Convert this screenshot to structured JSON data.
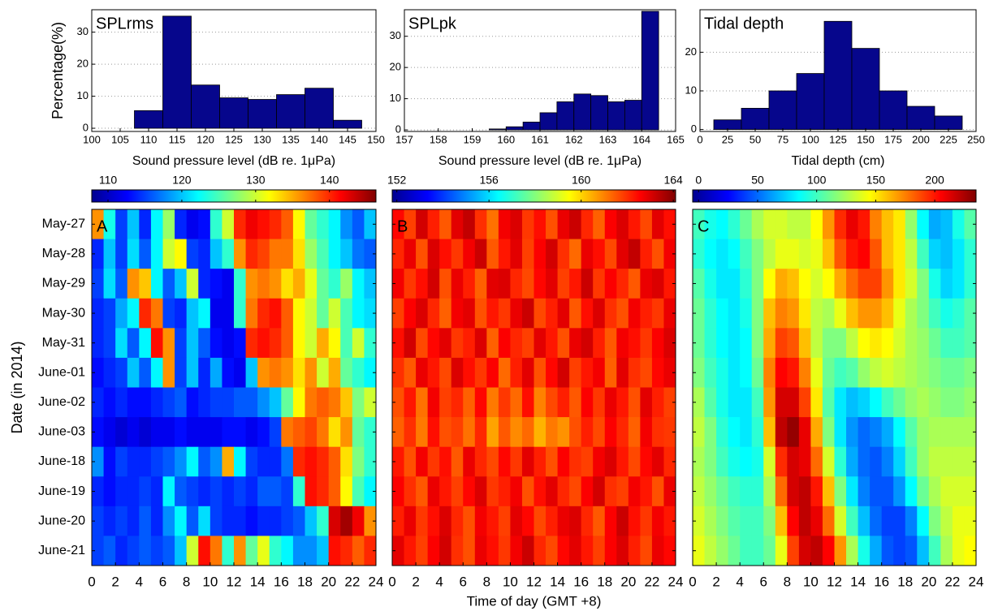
{
  "chart_data": [
    {
      "type": "histogram",
      "title": "SPLrms",
      "xlabel": "Sound pressure level (dB re. 1μPa)",
      "ylabel": "Percentage(%)",
      "color": "#06068c",
      "grid": true,
      "bins": [
        107.5,
        112.5,
        117.5,
        122.5,
        127.5,
        132.5,
        137.5,
        142.5,
        147.5
      ],
      "values": [
        5.5,
        35,
        13.5,
        9.5,
        9,
        10.5,
        12.5,
        2.5
      ],
      "xlim": [
        100,
        150
      ],
      "xticks": [
        100,
        105,
        110,
        115,
        120,
        125,
        130,
        135,
        140,
        145,
        150
      ],
      "ylim": [
        -1,
        37
      ],
      "yticks": [
        0,
        10,
        20,
        30
      ]
    },
    {
      "type": "histogram",
      "title": "SPLpk",
      "xlabel": "Sound pressure level (dB re. 1μPa)",
      "color": "#06068c",
      "grid": true,
      "bins": [
        159.5,
        160,
        160.5,
        161,
        161.5,
        162,
        162.5,
        163,
        163.5,
        164,
        164.5
      ],
      "values": [
        0.3,
        1,
        2.5,
        5.5,
        9,
        11.5,
        11,
        9,
        9.5,
        38
      ],
      "xlim": [
        157,
        165
      ],
      "xticks": [
        157,
        158,
        159,
        160,
        161,
        162,
        163,
        164,
        165
      ],
      "ylim": [
        -0.5,
        38.5
      ],
      "yticks": [
        0,
        10,
        20,
        30
      ]
    },
    {
      "type": "histogram",
      "title": "Tidal depth",
      "xlabel": "Tidal depth (cm)",
      "color": "#06068c",
      "grid": true,
      "bins": [
        12.5,
        37.5,
        62.5,
        87.5,
        112.5,
        137.5,
        162.5,
        187.5,
        212.5,
        237.5
      ],
      "values": [
        2.5,
        5.5,
        10,
        14.5,
        28,
        21,
        10,
        6,
        3.5
      ],
      "xlim": [
        0,
        250
      ],
      "xticks": [
        0,
        25,
        50,
        75,
        100,
        125,
        150,
        175,
        200,
        225,
        250
      ],
      "ylim": [
        -0.5,
        31
      ],
      "yticks": [
        0,
        10,
        20
      ]
    },
    {
      "type": "heatmap",
      "label": "A",
      "colormap": "jet",
      "ylabel": "Date (in 2014)",
      "categories": [
        "May-27",
        "May-28",
        "May-29",
        "May-30",
        "May-31",
        "June-01",
        "June-02",
        "June-03",
        "June-18",
        "June-19",
        "June-20",
        "June-21"
      ],
      "clim": [
        107.8,
        146.3
      ],
      "cticks": [
        110,
        120,
        130,
        140
      ],
      "xlim": [
        0,
        24
      ],
      "xticks": [
        0,
        2,
        4,
        6,
        8,
        10,
        12,
        14,
        16,
        18,
        20,
        22,
        24
      ],
      "values": [
        [
          136,
          123,
          115,
          120,
          114,
          122,
          128,
          114,
          112,
          113,
          124,
          130,
          140,
          142,
          141,
          140,
          138,
          132,
          126,
          124,
          122,
          118,
          116,
          120
        ],
        [
          114,
          120,
          115,
          121,
          116,
          122,
          130,
          132,
          115,
          114,
          120,
          124,
          136,
          140,
          139,
          137,
          137,
          133,
          128,
          125,
          122,
          120,
          117,
          116
        ],
        [
          115,
          121,
          116,
          136,
          134,
          122,
          116,
          120,
          130,
          114,
          113,
          112,
          124,
          136,
          137,
          136,
          133,
          135,
          131,
          126,
          124,
          128,
          122,
          120
        ],
        [
          114,
          115,
          119,
          122,
          140,
          137,
          115,
          114,
          120,
          122,
          112,
          112,
          124,
          137,
          140,
          141,
          138,
          132,
          130,
          126,
          130,
          125,
          122,
          121
        ],
        [
          114,
          115,
          121,
          116,
          122,
          141,
          136,
          115,
          120,
          116,
          113,
          112,
          113,
          140,
          141,
          140,
          138,
          132,
          130,
          135,
          132,
          125,
          130,
          124
        ],
        [
          113,
          114,
          115,
          120,
          116,
          122,
          136,
          115,
          120,
          114,
          119,
          113,
          112,
          120,
          136,
          137,
          136,
          133,
          136,
          130,
          135,
          126,
          124,
          122
        ],
        [
          114,
          113,
          114,
          113,
          113,
          114,
          115,
          116,
          113,
          114,
          115,
          115,
          116,
          116,
          118,
          120,
          126,
          132,
          137,
          138,
          137,
          134,
          127,
          130
        ],
        [
          113,
          112,
          111,
          112,
          111,
          112,
          112,
          113,
          112,
          112,
          112,
          113,
          113,
          112,
          113,
          115,
          137,
          138,
          139,
          137,
          133,
          136,
          126,
          124
        ],
        [
          118,
          113,
          115,
          114,
          114,
          115,
          116,
          118,
          122,
          116,
          118,
          135,
          122,
          115,
          114,
          114,
          117,
          140,
          141,
          140,
          138,
          133,
          127,
          124
        ],
        [
          114,
          113,
          114,
          114,
          115,
          114,
          122,
          116,
          115,
          114,
          115,
          114,
          115,
          114,
          116,
          116,
          115,
          124,
          141,
          140,
          138,
          132,
          125,
          122
        ],
        [
          115,
          114,
          115,
          114,
          116,
          114,
          118,
          122,
          116,
          121,
          115,
          114,
          114,
          113,
          114,
          114,
          115,
          116,
          120,
          124,
          143,
          145,
          142,
          136
        ],
        [
          115,
          116,
          114,
          115,
          116,
          115,
          116,
          120,
          130,
          141,
          137,
          124,
          136,
          126,
          131,
          124,
          122,
          118,
          118,
          120,
          141,
          140,
          138,
          140
        ]
      ]
    },
    {
      "type": "heatmap",
      "label": "B",
      "colormap": "jet",
      "xlabel": "Time of day (GMT +8)",
      "clim": [
        151.8,
        164.1
      ],
      "cticks": [
        152,
        156,
        160,
        164
      ],
      "xlim": [
        0,
        24
      ],
      "xticks": [
        0,
        2,
        4,
        6,
        8,
        10,
        12,
        14,
        16,
        18,
        20,
        22,
        24
      ],
      "values": [
        [
          162.5,
          161.8,
          163.1,
          162.2,
          161.5,
          162.9,
          163.3,
          162,
          161.2,
          162.7,
          163,
          161.9,
          162.4,
          161.6,
          162.8,
          163.2,
          162.1,
          161.4,
          162.6,
          163,
          162.3,
          161.7,
          162.9,
          162.4
        ],
        [
          162.1,
          162.8,
          161.6,
          163,
          162.4,
          161.9,
          162.7,
          163.2,
          161.5,
          162.3,
          162.9,
          161.8,
          162.6,
          163.1,
          162,
          161.3,
          162.8,
          162.4,
          161.7,
          162.9,
          163.3,
          162.2,
          161.6,
          162.7
        ],
        [
          162.7,
          161.9,
          162.4,
          163.1,
          161.6,
          162.8,
          162.2,
          161.4,
          162.9,
          163,
          162.1,
          161.7,
          162.5,
          162.9,
          161.8,
          162.3,
          163.2,
          161.9,
          162.6,
          162.1,
          161.5,
          162.8,
          163,
          162.3
        ],
        [
          161.8,
          162.6,
          163,
          162.1,
          161.4,
          162.7,
          162.9,
          161.6,
          162.3,
          161.9,
          162.8,
          163.2,
          161.7,
          162.2,
          162.9,
          161.5,
          162.4,
          163,
          162,
          161.6,
          162.7,
          162.2,
          161.9,
          162.8
        ],
        [
          162.4,
          163.1,
          161.7,
          162.5,
          162.9,
          161.9,
          162.2,
          163,
          161.4,
          162.6,
          162.1,
          161.8,
          162.9,
          162.3,
          161.6,
          162.8,
          163.1,
          162.2,
          161.5,
          162.7,
          162.4,
          161.9,
          162.6,
          163
        ],
        [
          162,
          161.5,
          162.8,
          162.3,
          161.7,
          163,
          162.4,
          161.9,
          162.6,
          161.3,
          162.2,
          162.9,
          161.6,
          162.5,
          163.1,
          161.8,
          162.3,
          162.7,
          161.4,
          162.9,
          162,
          161.7,
          162.5,
          162.8
        ],
        [
          161.6,
          162.3,
          161.2,
          162.7,
          161.8,
          162.1,
          161.4,
          162.5,
          161.1,
          161.9,
          161.3,
          162.4,
          161,
          161.7,
          162.2,
          161.5,
          162.6,
          161.9,
          162.8,
          162.3,
          161.6,
          162.9,
          162.2,
          161.8
        ],
        [
          161.4,
          162,
          161.1,
          162.4,
          161.6,
          161.8,
          161.2,
          162.1,
          160.6,
          161.5,
          160.9,
          161.3,
          160.4,
          161.1,
          160.8,
          161.6,
          162.2,
          161.7,
          162.6,
          162.1,
          161.4,
          162.7,
          162,
          161.9
        ],
        [
          162.3,
          161.6,
          162.7,
          161.9,
          162.4,
          161.5,
          162.8,
          162.1,
          161.7,
          162.5,
          161.9,
          162.9,
          162.2,
          161.6,
          162.6,
          162,
          161.8,
          162.7,
          163,
          162.3,
          161.7,
          162.5,
          162.9,
          162.1
        ],
        [
          162.6,
          162,
          161.5,
          162.8,
          162.3,
          161.8,
          162.5,
          163,
          161.9,
          162.2,
          162.7,
          161.6,
          162.4,
          162.9,
          162.1,
          161.7,
          162.6,
          163.1,
          162,
          161.8,
          162.7,
          162.3,
          161.6,
          162.8
        ],
        [
          162.2,
          162.8,
          161.9,
          162.4,
          163,
          162.1,
          161.6,
          162.7,
          162.3,
          161.8,
          162.9,
          162.5,
          161.7,
          162.2,
          162.8,
          163,
          162.1,
          161.5,
          162.6,
          163.2,
          162.4,
          161.9,
          162.7,
          162.3
        ],
        [
          162.9,
          162.3,
          161.8,
          162.6,
          163.1,
          162,
          161.6,
          162.8,
          162.4,
          161.9,
          162.7,
          163.2,
          162.1,
          161.7,
          162.5,
          162.9,
          162.3,
          161.8,
          162.6,
          163,
          162.2,
          161.7,
          162.8,
          162.5
        ]
      ]
    },
    {
      "type": "heatmap",
      "label": "C",
      "colormap": "jet",
      "clim": [
        -5,
        235
      ],
      "cticks": [
        0,
        50,
        100,
        150,
        200
      ],
      "xlim": [
        0,
        24
      ],
      "xticks": [
        0,
        2,
        4,
        6,
        8,
        10,
        12,
        14,
        16,
        18,
        20,
        22,
        24
      ],
      "values": [
        [
          100,
          90,
          85,
          95,
          110,
          125,
          135,
          135,
          130,
          130,
          145,
          170,
          195,
          210,
          200,
          175,
          160,
          150,
          120,
          85,
          65,
          70,
          90,
          105
        ],
        [
          95,
          85,
          80,
          85,
          100,
          115,
          130,
          140,
          140,
          135,
          140,
          160,
          185,
          200,
          205,
          185,
          160,
          150,
          130,
          100,
          75,
          70,
          80,
          95
        ],
        [
          105,
          90,
          80,
          80,
          95,
          115,
          145,
          165,
          160,
          145,
          135,
          145,
          165,
          180,
          190,
          190,
          170,
          150,
          135,
          115,
          90,
          75,
          80,
          95
        ],
        [
          110,
          95,
          85,
          80,
          90,
          115,
          160,
          175,
          170,
          150,
          130,
          125,
          140,
          160,
          170,
          170,
          160,
          140,
          125,
          115,
          100,
          90,
          95,
          105
        ],
        [
          110,
          95,
          85,
          80,
          85,
          115,
          165,
          190,
          185,
          160,
          130,
          115,
          115,
          130,
          145,
          150,
          145,
          135,
          125,
          120,
          110,
          100,
          100,
          105
        ],
        [
          115,
          100,
          90,
          80,
          85,
          110,
          175,
          205,
          200,
          175,
          140,
          110,
          100,
          105,
          120,
          130,
          135,
          130,
          125,
          120,
          115,
          110,
          110,
          115
        ],
        [
          125,
          105,
          90,
          80,
          80,
          100,
          170,
          215,
          215,
          190,
          150,
          105,
          80,
          70,
          75,
          85,
          100,
          110,
          120,
          125,
          120,
          115,
          115,
          120
        ],
        [
          130,
          115,
          95,
          85,
          80,
          95,
          160,
          220,
          230,
          210,
          165,
          115,
          80,
          60,
          50,
          55,
          65,
          85,
          105,
          120,
          125,
          125,
          125,
          125
        ],
        [
          125,
          115,
          100,
          90,
          85,
          90,
          135,
          195,
          215,
          210,
          180,
          135,
          95,
          65,
          50,
          45,
          55,
          75,
          100,
          120,
          130,
          130,
          130,
          130
        ],
        [
          130,
          120,
          110,
          100,
          95,
          95,
          125,
          180,
          215,
          220,
          200,
          160,
          115,
          80,
          55,
          45,
          45,
          60,
          85,
          110,
          125,
          135,
          135,
          135
        ],
        [
          135,
          125,
          115,
          105,
          100,
          100,
          115,
          160,
          205,
          220,
          210,
          180,
          135,
          100,
          70,
          50,
          40,
          40,
          55,
          85,
          115,
          130,
          140,
          140
        ],
        [
          140,
          130,
          120,
          110,
          100,
          100,
          110,
          140,
          190,
          215,
          220,
          205,
          170,
          125,
          90,
          65,
          45,
          40,
          45,
          70,
          100,
          125,
          140,
          145
        ]
      ]
    }
  ]
}
